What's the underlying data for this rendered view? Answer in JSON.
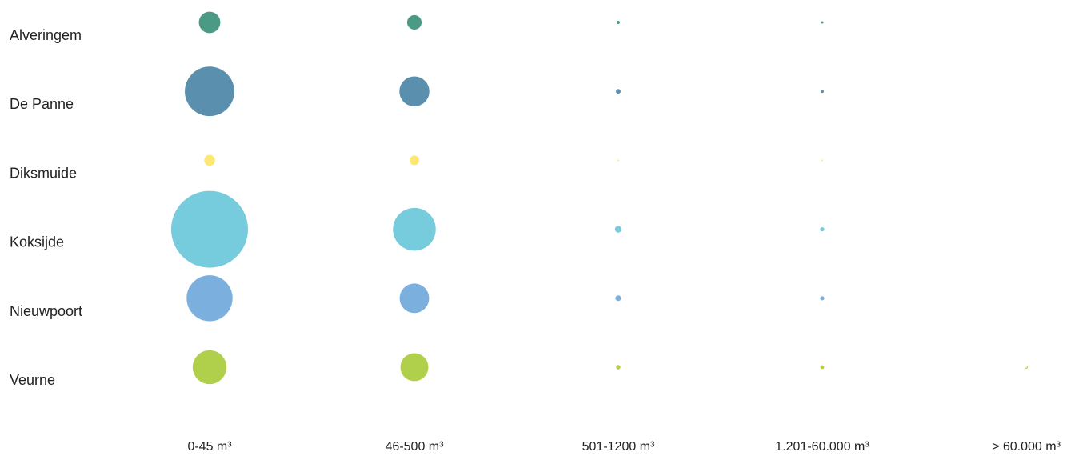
{
  "chart_data": {
    "type": "bubble-matrix",
    "title": "",
    "xlabel": "",
    "ylabel": "",
    "grid": false,
    "legend": "none",
    "categories": [
      "0-45 m³",
      "46-500 m³",
      "501-1200 m³",
      "1.201-60.000 m³",
      "> 60.000 m³"
    ],
    "series": [
      {
        "name": "Alveringem",
        "color": "#4a9a86",
        "values": [
          740,
          340,
          16,
          10,
          0
        ]
      },
      {
        "name": "De Panne",
        "color": "#5a8fad",
        "values": [
          3950,
          1450,
          36,
          16,
          0
        ]
      },
      {
        "name": "Diksmuide",
        "color": "#fde874",
        "values": [
          190,
          150,
          4,
          4,
          0
        ]
      },
      {
        "name": "Koksijde",
        "color": "#76cbdc",
        "values": [
          9500,
          2950,
          70,
          28,
          0
        ]
      },
      {
        "name": "Nieuwpoort",
        "color": "#7bafdd",
        "values": [
          3400,
          1400,
          52,
          28,
          0
        ]
      },
      {
        "name": "Veurne",
        "color": "#b0cf4b",
        "values": [
          1850,
          1260,
          30,
          24,
          9
        ]
      }
    ]
  }
}
